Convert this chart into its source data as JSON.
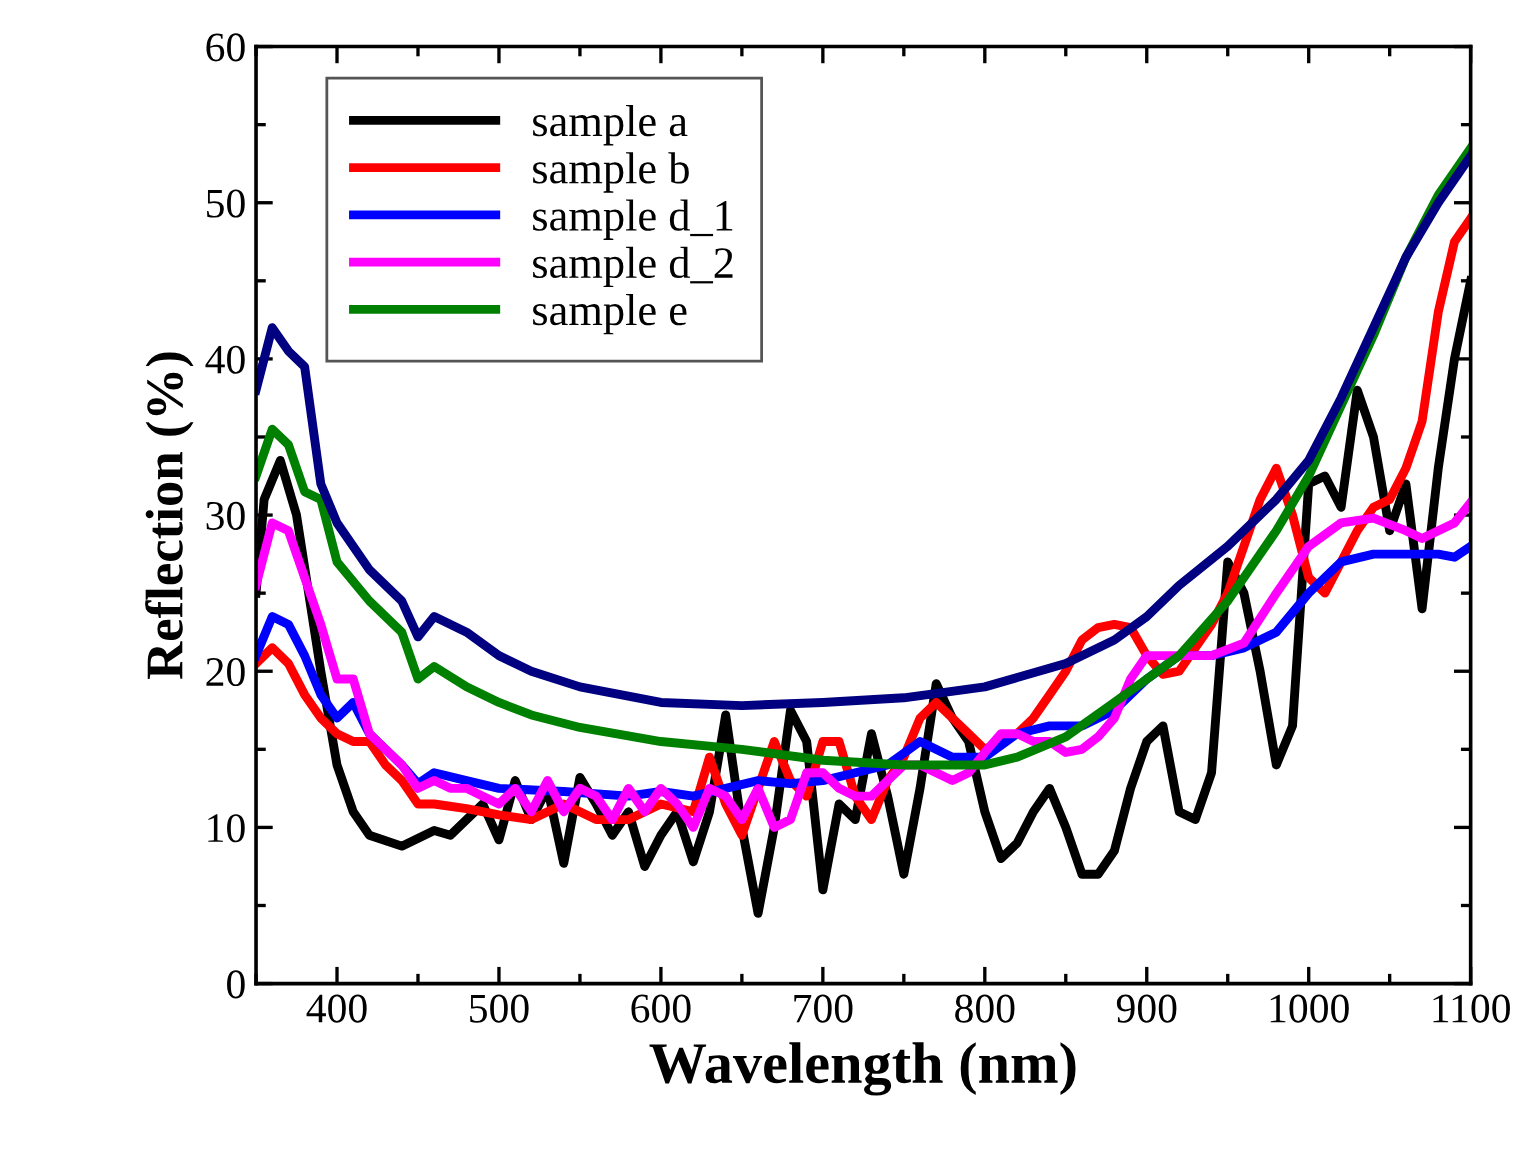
{
  "chart_data": {
    "type": "line",
    "xlabel": "Wavelength (nm)",
    "ylabel": "Reflection (%)",
    "xlim": [
      350,
      1100
    ],
    "xticks": [
      400,
      500,
      600,
      700,
      800,
      900,
      1000,
      1100
    ],
    "ylim": [
      0,
      60
    ],
    "yticks": [
      0,
      10,
      20,
      30,
      40,
      50,
      60
    ],
    "grid": false,
    "legend": "top left",
    "marker": "none",
    "line_style": "solid",
    "series": [
      {
        "name": "sample a",
        "color": "#000000",
        "x": [
          350,
          355,
          365,
          375,
          390,
          400,
          410,
          420,
          440,
          460,
          470,
          490,
          500,
          510,
          520,
          530,
          540,
          550,
          560,
          570,
          580,
          590,
          600,
          610,
          620,
          630,
          640,
          650,
          660,
          670,
          680,
          690,
          700,
          710,
          720,
          730,
          740,
          750,
          760,
          770,
          780,
          790,
          800,
          810,
          820,
          830,
          840,
          850,
          860,
          870,
          880,
          890,
          900,
          910,
          920,
          930,
          940,
          950,
          960,
          970,
          980,
          990,
          1000,
          1010,
          1020,
          1030,
          1040,
          1050,
          1060,
          1070,
          1080,
          1090,
          1100
        ],
        "values": [
          25,
          31,
          33.5,
          30,
          20,
          14,
          11,
          9.5,
          8.8,
          9.8,
          9.5,
          11.5,
          9.2,
          13,
          10.5,
          12.5,
          7.7,
          13.2,
          11.5,
          9.5,
          11,
          7.5,
          9.5,
          11,
          7.8,
          11,
          17.2,
          10,
          4.5,
          10,
          17.5,
          15.5,
          6,
          11.5,
          10.5,
          16,
          12,
          7,
          12.5,
          19.2,
          17,
          15.5,
          11,
          8,
          9,
          11,
          12.5,
          10,
          7,
          7,
          8.5,
          12.5,
          15.5,
          16.5,
          11,
          10.5,
          13.5,
          27,
          25,
          20,
          14,
          16.5,
          32,
          32.5,
          30.5,
          38,
          35,
          29,
          32,
          24,
          33,
          40,
          45
        ]
      },
      {
        "name": "sample b",
        "color": "#ff0000",
        "x": [
          350,
          360,
          370,
          380,
          390,
          400,
          410,
          420,
          430,
          440,
          450,
          460,
          480,
          500,
          520,
          540,
          560,
          580,
          600,
          620,
          630,
          640,
          650,
          660,
          670,
          680,
          690,
          700,
          710,
          720,
          730,
          740,
          750,
          760,
          770,
          780,
          790,
          800,
          810,
          820,
          830,
          840,
          850,
          860,
          870,
          880,
          890,
          900,
          910,
          920,
          930,
          940,
          950,
          960,
          970,
          980,
          990,
          1000,
          1010,
          1020,
          1030,
          1040,
          1050,
          1060,
          1070,
          1080,
          1090,
          1100
        ],
        "values": [
          20.5,
          21.5,
          20.5,
          18.5,
          17,
          16,
          15.5,
          15.5,
          14,
          13,
          11.5,
          11.5,
          11.2,
          10.8,
          10.5,
          11.5,
          10.5,
          10.5,
          11.5,
          11,
          14.5,
          11.5,
          9.5,
          12.5,
          15.5,
          13,
          12,
          15.5,
          15.5,
          12,
          10.5,
          13,
          14.5,
          17,
          18,
          17,
          16,
          15,
          15.5,
          16,
          17,
          18.5,
          20,
          22,
          22.8,
          23,
          22.8,
          21,
          19.8,
          20,
          21.5,
          23,
          25,
          28,
          31,
          33,
          30,
          26,
          25,
          27,
          29,
          30.5,
          31,
          33,
          36,
          43,
          47.5,
          49
        ]
      },
      {
        "name": "sample d_1",
        "color": "#0000ff",
        "x": [
          350,
          360,
          370,
          380,
          390,
          400,
          410,
          420,
          430,
          440,
          450,
          460,
          480,
          500,
          540,
          580,
          600,
          620,
          640,
          660,
          680,
          700,
          720,
          740,
          760,
          780,
          800,
          820,
          840,
          860,
          880,
          900,
          920,
          940,
          960,
          980,
          1000,
          1020,
          1040,
          1060,
          1080,
          1090,
          1100
        ],
        "values": [
          21,
          23.5,
          23,
          21,
          18.5,
          17,
          18,
          16,
          15,
          14,
          12.8,
          13.5,
          13,
          12.5,
          12.3,
          12,
          12.3,
          12,
          12.5,
          13,
          12.8,
          13,
          13.5,
          14,
          15.5,
          14.5,
          14.5,
          16,
          16.5,
          16.5,
          17.5,
          19.5,
          21,
          21,
          21.5,
          22.5,
          25,
          27,
          27.5,
          27.5,
          27.5,
          27.3,
          28
        ]
      },
      {
        "name": "sample d_2",
        "color": "#ff00ff",
        "x": [
          350,
          360,
          370,
          380,
          390,
          400,
          410,
          420,
          430,
          440,
          450,
          460,
          470,
          480,
          490,
          500,
          510,
          520,
          530,
          540,
          550,
          560,
          570,
          580,
          590,
          600,
          610,
          620,
          630,
          640,
          650,
          660,
          670,
          680,
          690,
          700,
          710,
          720,
          730,
          740,
          750,
          760,
          770,
          780,
          790,
          800,
          810,
          820,
          830,
          840,
          850,
          860,
          870,
          880,
          890,
          900,
          910,
          920,
          940,
          960,
          980,
          1000,
          1020,
          1040,
          1060,
          1070,
          1080,
          1090,
          1100
        ],
        "values": [
          25.5,
          29.5,
          29,
          26,
          23,
          19.5,
          19.5,
          16,
          15,
          14,
          12.5,
          13,
          12.5,
          12.5,
          12,
          11.5,
          12.5,
          11,
          13,
          11,
          12.5,
          12,
          10.5,
          12.5,
          11,
          12.5,
          11.5,
          10,
          12.5,
          12,
          10.5,
          12.5,
          10,
          10.5,
          13.5,
          13.5,
          12.5,
          12,
          12,
          13,
          14,
          14,
          13.5,
          13,
          13.5,
          14.8,
          16,
          16,
          15.5,
          15.5,
          14.8,
          15,
          15.8,
          17,
          19.5,
          21,
          21,
          21,
          21,
          21.8,
          25,
          28,
          29.5,
          29.8,
          29,
          28.5,
          29,
          29.5,
          30.8
        ]
      },
      {
        "name": "sample e",
        "color": "#008000",
        "x": [
          350,
          360,
          370,
          380,
          390,
          400,
          420,
          440,
          450,
          460,
          480,
          500,
          520,
          550,
          600,
          650,
          700,
          750,
          800,
          820,
          850,
          880,
          900,
          920,
          950,
          980,
          1000,
          1020,
          1040,
          1060,
          1080,
          1100
        ],
        "values": [
          32.5,
          35.5,
          34.5,
          31.5,
          31,
          27,
          24.5,
          22.5,
          19.5,
          20.3,
          19,
          18,
          17.2,
          16.4,
          15.5,
          15,
          14.3,
          14,
          14,
          14.5,
          15.8,
          18,
          19.5,
          21,
          24.5,
          29,
          32.5,
          37,
          41.5,
          46.5,
          50.5,
          53.5
        ]
      },
      {
        "color": "#000080",
        "x": [
          350,
          360,
          370,
          380,
          390,
          400,
          420,
          440,
          450,
          460,
          480,
          500,
          520,
          550,
          600,
          650,
          700,
          750,
          800,
          820,
          850,
          880,
          900,
          920,
          950,
          980,
          1000,
          1020,
          1040,
          1060,
          1080,
          1100
        ],
        "values": [
          38,
          42,
          40.5,
          39.5,
          32,
          29.5,
          26.5,
          24.5,
          22.2,
          23.5,
          22.5,
          21,
          20,
          19,
          18,
          17.8,
          18,
          18.3,
          19,
          19.6,
          20.5,
          22,
          23.5,
          25.5,
          28,
          31,
          33.5,
          37.5,
          42,
          46.5,
          50,
          53
        ]
      }
    ]
  }
}
